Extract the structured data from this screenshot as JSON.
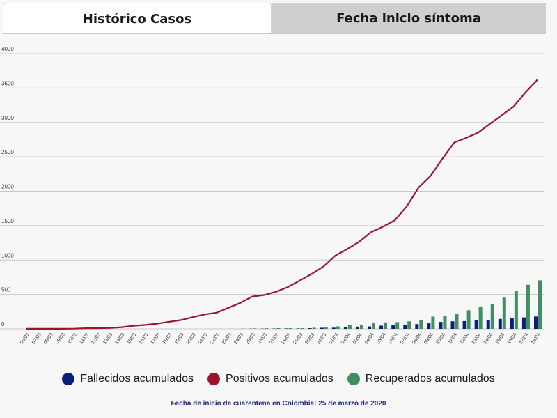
{
  "tabs": [
    {
      "label": "Histórico Casos",
      "active": true
    },
    {
      "label": "Fecha inicio síntoma",
      "active": false
    }
  ],
  "footnote": "Fecha de inicio de cuarentena en Colombia: 25 de marzo de 2020",
  "colors": {
    "fallecidos": "#0b1f7a",
    "positivos": "#9b1530",
    "recuperados": "#3f8f62",
    "grid": "#c8c8c8",
    "axis_text": "#333333"
  },
  "chart_data": {
    "type": "line",
    "title": "",
    "xlabel": "",
    "ylabel": "",
    "ylim": [
      0,
      4000
    ],
    "yticks": [
      0,
      500,
      1000,
      1500,
      2000,
      2500,
      3000,
      3500,
      4000
    ],
    "grid": true,
    "legend_position": "bottom",
    "x": [
      "06/03",
      "07/03",
      "08/03",
      "09/03",
      "10/03",
      "11/03",
      "12/03",
      "13/03",
      "14/03",
      "15/03",
      "16/03",
      "17/03",
      "18/03",
      "19/03",
      "20/03",
      "21/03",
      "22/03",
      "23/03",
      "24/03",
      "25/03",
      "26/03",
      "27/03",
      "28/03",
      "29/03",
      "30/03",
      "31/03",
      "01/04",
      "02/04",
      "03/04",
      "04/04",
      "05/04",
      "06/04",
      "07/04",
      "08/04",
      "09/04",
      "10/04",
      "11/04",
      "12/04",
      "13/04",
      "14/04",
      "15/04",
      "16/04",
      "17/04",
      "18/04"
    ],
    "series": [
      {
        "name": "Fallecidos acumulados",
        "type": "bar",
        "color": "#0b1f7a",
        "values": [
          0,
          0,
          0,
          0,
          0,
          0,
          0,
          0,
          0,
          0,
          0,
          0,
          0,
          0,
          0,
          0,
          0,
          0,
          0,
          3,
          3,
          4,
          6,
          6,
          10,
          16,
          17,
          25,
          32,
          35,
          46,
          50,
          54,
          69,
          80,
          100,
          109,
          112,
          127,
          131,
          144,
          153,
          166,
          179
        ]
      },
      {
        "name": "Positivos acumulados",
        "type": "line",
        "color": "#9b1530",
        "values": [
          1,
          1,
          1,
          1,
          3,
          9,
          9,
          13,
          24,
          45,
          57,
          75,
          102,
          128,
          170,
          210,
          235,
          306,
          378,
          470,
          491,
          539,
          608,
          702,
          798,
          906,
          1065,
          1161,
          1267,
          1406,
          1485,
          1579,
          1780,
          2054,
          2223,
          2473,
          2709,
          2776,
          2852,
          2979,
          3105,
          3233,
          3439,
          3621
        ]
      },
      {
        "name": "Recuperados acumulados",
        "type": "bar",
        "color": "#3f8f62",
        "values": [
          0,
          0,
          0,
          0,
          0,
          0,
          0,
          0,
          0,
          0,
          0,
          0,
          0,
          0,
          0,
          0,
          0,
          1,
          3,
          6,
          8,
          10,
          10,
          10,
          16,
          27,
          36,
          55,
          58,
          88,
          93,
          97,
          109,
          131,
          178,
          193,
          215,
          270,
          319,
          354,
          454,
          550,
          640,
          705
        ]
      }
    ]
  }
}
